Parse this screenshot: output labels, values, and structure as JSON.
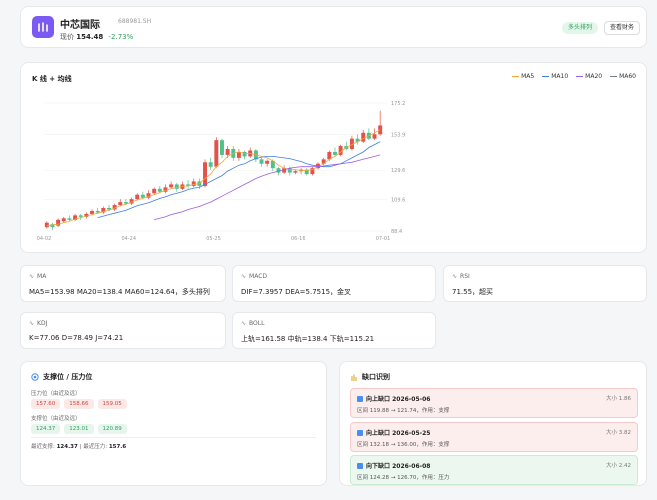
{
  "header": {
    "name": "中芯国际",
    "code": "688981.SH",
    "price_label": "现价",
    "price": "154.48",
    "change": "-2.73%",
    "trend_badge": "多头排列",
    "fin_button": "查看财务"
  },
  "colors": {
    "brand": "#7a5af0",
    "up": "#e3534a",
    "down": "#4fc18b",
    "ma5": "#f0a73a",
    "ma10": "#3c7fe6",
    "ma20": "#9b5de5",
    "ma60": "#6c7a8a"
  },
  "kchart": {
    "title": "K 线 + 均线",
    "legend": [
      "MA5",
      "MA10",
      "MA20",
      "MA60"
    ],
    "yticks": [
      "175.2",
      "153.9",
      "129.6",
      "109.6",
      "88.4"
    ],
    "xticks": [
      "04-02",
      "04-24",
      "05-25",
      "06-16",
      "07-01"
    ]
  },
  "chart_data": {
    "type": "line",
    "title": "K 线 + 均线",
    "y_ticks": [
      175.2,
      153.9,
      129.6,
      109.6,
      88.4
    ],
    "x_ticks": [
      "04-02",
      "04-24",
      "05-25",
      "06-16",
      "07-01"
    ],
    "ylim": [
      88.4,
      175.2
    ],
    "candles": [
      {
        "o": 91,
        "c": 94,
        "h": 95,
        "l": 90
      },
      {
        "o": 93,
        "c": 91,
        "h": 94,
        "l": 89
      },
      {
        "o": 92,
        "c": 96,
        "h": 97,
        "l": 91
      },
      {
        "o": 95,
        "c": 97,
        "h": 98,
        "l": 94
      },
      {
        "o": 97,
        "c": 96,
        "h": 99,
        "l": 95
      },
      {
        "o": 96,
        "c": 99,
        "h": 100,
        "l": 95
      },
      {
        "o": 99,
        "c": 98,
        "h": 100,
        "l": 96
      },
      {
        "o": 98,
        "c": 100,
        "h": 101,
        "l": 97
      },
      {
        "o": 100,
        "c": 102,
        "h": 103,
        "l": 99
      },
      {
        "o": 102,
        "c": 101,
        "h": 104,
        "l": 100
      },
      {
        "o": 101,
        "c": 104,
        "h": 105,
        "l": 100
      },
      {
        "o": 104,
        "c": 103,
        "h": 106,
        "l": 102
      },
      {
        "o": 103,
        "c": 106,
        "h": 107,
        "l": 102
      },
      {
        "o": 106,
        "c": 108,
        "h": 110,
        "l": 105
      },
      {
        "o": 108,
        "c": 107,
        "h": 110,
        "l": 106
      },
      {
        "o": 107,
        "c": 110,
        "h": 111,
        "l": 106
      },
      {
        "o": 110,
        "c": 113,
        "h": 114,
        "l": 109
      },
      {
        "o": 113,
        "c": 111,
        "h": 115,
        "l": 110
      },
      {
        "o": 111,
        "c": 114,
        "h": 116,
        "l": 110
      },
      {
        "o": 114,
        "c": 117,
        "h": 118,
        "l": 113
      },
      {
        "o": 117,
        "c": 115,
        "h": 119,
        "l": 114
      },
      {
        "o": 115,
        "c": 118,
        "h": 120,
        "l": 114
      },
      {
        "o": 118,
        "c": 120,
        "h": 122,
        "l": 117
      },
      {
        "o": 120,
        "c": 117,
        "h": 121,
        "l": 115
      },
      {
        "o": 117,
        "c": 120,
        "h": 122,
        "l": 116
      },
      {
        "o": 120,
        "c": 119,
        "h": 123,
        "l": 117
      },
      {
        "o": 119,
        "c": 122,
        "h": 124,
        "l": 118
      },
      {
        "o": 122,
        "c": 119,
        "h": 124,
        "l": 117
      },
      {
        "o": 119,
        "c": 135,
        "h": 137,
        "l": 118
      },
      {
        "o": 135,
        "c": 132,
        "h": 138,
        "l": 130
      },
      {
        "o": 132,
        "c": 150,
        "h": 152,
        "l": 131
      },
      {
        "o": 150,
        "c": 140,
        "h": 151,
        "l": 138
      },
      {
        "o": 140,
        "c": 144,
        "h": 146,
        "l": 138
      },
      {
        "o": 144,
        "c": 138,
        "h": 146,
        "l": 136
      },
      {
        "o": 138,
        "c": 142,
        "h": 144,
        "l": 136
      },
      {
        "o": 142,
        "c": 139,
        "h": 143,
        "l": 137
      },
      {
        "o": 139,
        "c": 143,
        "h": 145,
        "l": 138
      },
      {
        "o": 143,
        "c": 137,
        "h": 144,
        "l": 135
      },
      {
        "o": 137,
        "c": 134,
        "h": 138,
        "l": 132
      },
      {
        "o": 134,
        "c": 136,
        "h": 137,
        "l": 132
      },
      {
        "o": 136,
        "c": 131,
        "h": 137,
        "l": 129
      },
      {
        "o": 131,
        "c": 128,
        "h": 132,
        "l": 126
      },
      {
        "o": 128,
        "c": 131,
        "h": 133,
        "l": 127
      },
      {
        "o": 131,
        "c": 128,
        "h": 132,
        "l": 126
      },
      {
        "o": 128,
        "c": 129,
        "h": 130,
        "l": 127
      },
      {
        "o": 129,
        "c": 130,
        "h": 131,
        "l": 127
      },
      {
        "o": 130,
        "c": 127,
        "h": 131,
        "l": 126
      },
      {
        "o": 127,
        "c": 131,
        "h": 132,
        "l": 126
      },
      {
        "o": 131,
        "c": 134,
        "h": 135,
        "l": 130
      },
      {
        "o": 134,
        "c": 137,
        "h": 138,
        "l": 133
      },
      {
        "o": 137,
        "c": 142,
        "h": 143,
        "l": 136
      },
      {
        "o": 142,
        "c": 140,
        "h": 145,
        "l": 139
      },
      {
        "o": 140,
        "c": 146,
        "h": 147,
        "l": 139
      },
      {
        "o": 146,
        "c": 144,
        "h": 149,
        "l": 143
      },
      {
        "o": 144,
        "c": 151,
        "h": 153,
        "l": 143
      },
      {
        "o": 151,
        "c": 149,
        "h": 154,
        "l": 147
      },
      {
        "o": 149,
        "c": 155,
        "h": 157,
        "l": 148
      },
      {
        "o": 155,
        "c": 151,
        "h": 158,
        "l": 150
      },
      {
        "o": 151,
        "c": 154,
        "h": 158,
        "l": 150
      },
      {
        "o": 154,
        "c": 160,
        "h": 170,
        "l": 153
      }
    ],
    "series": [
      {
        "name": "MA5",
        "values": [
          92,
          92.5,
          93,
          94,
          95,
          96.5,
          97.5,
          98.5,
          99.5,
          100.5,
          101.5,
          102.5,
          104,
          105.5,
          106.5,
          108,
          109.5,
          110.5,
          112,
          113,
          114.5,
          116,
          117,
          118,
          118.5,
          119,
          120,
          120.5,
          124,
          127,
          132,
          135,
          139,
          141,
          142,
          141,
          141,
          140,
          139,
          138,
          136,
          133,
          131,
          130,
          130,
          129.5,
          129.5,
          130,
          132,
          134,
          137,
          139,
          142,
          145,
          147,
          149,
          151,
          153,
          155,
          157
        ]
      },
      {
        "name": "MA10",
        "values": [
          null,
          null,
          null,
          null,
          null,
          null,
          null,
          null,
          null,
          97.5,
          98.5,
          99.5,
          100.5,
          101.5,
          102.5,
          104,
          105.5,
          106.5,
          107.5,
          109,
          110.5,
          111.5,
          113,
          114,
          115,
          116.5,
          117.5,
          118,
          120,
          122,
          124,
          126,
          129,
          131,
          133,
          134,
          136,
          137.5,
          138.5,
          139,
          139,
          138.5,
          138,
          137.5,
          136.5,
          135.5,
          134,
          133,
          132.5,
          132,
          132,
          133,
          134,
          136,
          138,
          140,
          142,
          145,
          147,
          149
        ]
      },
      {
        "name": "MA20",
        "values": [
          null,
          null,
          null,
          null,
          null,
          null,
          null,
          null,
          null,
          null,
          null,
          null,
          null,
          null,
          null,
          null,
          null,
          null,
          null,
          96,
          97,
          98,
          99.5,
          100.5,
          101.5,
          103,
          104,
          105,
          106.5,
          108,
          110,
          112,
          114,
          116,
          118,
          120,
          122,
          124,
          125.5,
          127,
          128,
          129,
          130,
          131,
          131.5,
          132,
          132,
          132,
          132,
          132.5,
          133,
          133.5,
          134,
          134.5,
          135,
          136,
          137,
          138,
          139,
          140
        ]
      }
    ]
  },
  "indicators": [
    {
      "key": "ma",
      "title": "MA",
      "value": "MA5=153.98 MA20=138.4 MA60=124.64，多头排列"
    },
    {
      "key": "macd",
      "title": "MACD",
      "value": "DIF=7.3957 DEA=5.7515，金叉"
    },
    {
      "key": "rsi",
      "title": "RSI",
      "value": "71.55，超买"
    },
    {
      "key": "kdj",
      "title": "KDJ",
      "value": "K=77.06 D=78.49 J=74.21"
    },
    {
      "key": "boll",
      "title": "BOLL",
      "value": "上轨=161.58 中轨=138.4 下轨=115.21"
    }
  ],
  "support_resistance": {
    "title": "支撑位 / 压力位",
    "resistance_label": "压力位（由近及远）",
    "resistance": [
      "157.60",
      "158.66",
      "159.05"
    ],
    "support_label": "支撑位（由近及远）",
    "support": [
      "124.37",
      "123.01",
      "120.89"
    ],
    "nearest_support_label": "最近支撑:",
    "nearest_support": "124.37",
    "sep": "|",
    "nearest_resistance_label": "最近压力:",
    "nearest_resistance": "157.6"
  },
  "gaps": {
    "title": "缺口识别",
    "items": [
      {
        "type": "up",
        "title": "向上缺口 2026-05-06",
        "size": "大小 1.86",
        "detail": "区间 119.88 → 121.74，作用：支撑"
      },
      {
        "type": "up",
        "title": "向上缺口 2026-05-25",
        "size": "大小 3.82",
        "detail": "区间 132.18 → 136.00，作用：支撑"
      },
      {
        "type": "down",
        "title": "向下缺口 2026-06-08",
        "size": "大小 2.42",
        "detail": "区间 124.28 → 126.70，作用：压力"
      }
    ]
  }
}
